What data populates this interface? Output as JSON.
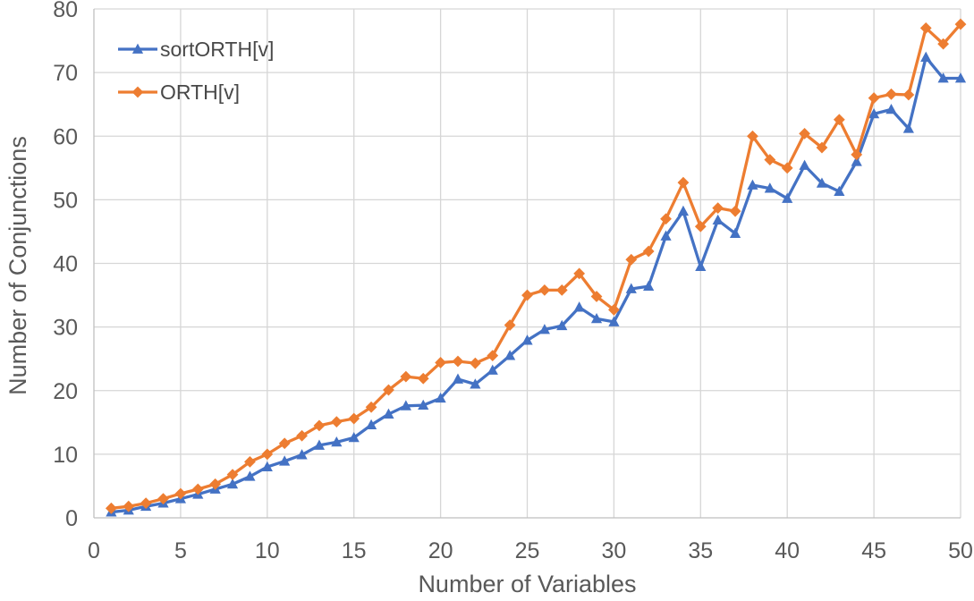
{
  "chart_data": {
    "type": "line",
    "title": "",
    "xlabel": "Number of Variables",
    "ylabel": "Number of Conjunctions",
    "xlim": [
      0,
      50
    ],
    "ylim": [
      0,
      80
    ],
    "xticks": [
      0,
      5,
      10,
      15,
      20,
      25,
      30,
      35,
      40,
      45,
      50
    ],
    "yticks": [
      0,
      10,
      20,
      30,
      40,
      50,
      60,
      70,
      80
    ],
    "grid": true,
    "legend_position": "top-left-inside",
    "x": [
      1,
      2,
      3,
      4,
      5,
      6,
      7,
      8,
      9,
      10,
      11,
      12,
      13,
      14,
      15,
      16,
      17,
      18,
      19,
      20,
      21,
      22,
      23,
      24,
      25,
      26,
      27,
      28,
      29,
      30,
      31,
      32,
      33,
      34,
      35,
      36,
      37,
      38,
      39,
      40,
      41,
      42,
      43,
      44,
      45,
      46,
      47,
      48,
      49,
      50
    ],
    "series": [
      {
        "name": "sortORTH[v]",
        "color": "#4472C4",
        "marker": "triangle",
        "values": [
          0.9,
          1.2,
          1.8,
          2.3,
          3.0,
          3.7,
          4.5,
          5.3,
          6.5,
          8.0,
          8.9,
          9.9,
          11.4,
          11.9,
          12.6,
          14.6,
          16.3,
          17.6,
          17.7,
          18.8,
          21.8,
          21.0,
          23.2,
          25.5,
          27.9,
          29.6,
          30.2,
          33.1,
          31.3,
          30.8,
          36.0,
          36.4,
          44.3,
          48.2,
          39.5,
          46.8,
          44.7,
          52.3,
          51.8,
          50.2,
          55.4,
          52.6,
          51.3,
          56.0,
          63.5,
          64.2,
          61.2,
          72.4,
          69.1,
          69.1
        ]
      },
      {
        "name": "ORTH[v]",
        "color": "#ED7D31",
        "marker": "diamond",
        "values": [
          1.5,
          1.8,
          2.3,
          3.0,
          3.8,
          4.5,
          5.3,
          6.8,
          8.8,
          10.0,
          11.7,
          12.9,
          14.5,
          15.1,
          15.6,
          17.4,
          20.1,
          22.2,
          21.9,
          24.4,
          24.6,
          24.3,
          25.5,
          30.3,
          35.0,
          35.8,
          35.8,
          38.4,
          34.8,
          32.7,
          40.6,
          41.9,
          47.0,
          52.7,
          45.8,
          48.7,
          48.2,
          60.0,
          56.3,
          55.0,
          60.4,
          58.2,
          62.6,
          57.1,
          66.0,
          66.6,
          66.5,
          77.0,
          74.5,
          77.6
        ]
      }
    ]
  },
  "colors": {
    "grid": "#D6D6D6",
    "axis": "#BFBFBF",
    "tick_text": "#595959",
    "axis_title_text": "#595959",
    "legend_text": "#484848"
  }
}
